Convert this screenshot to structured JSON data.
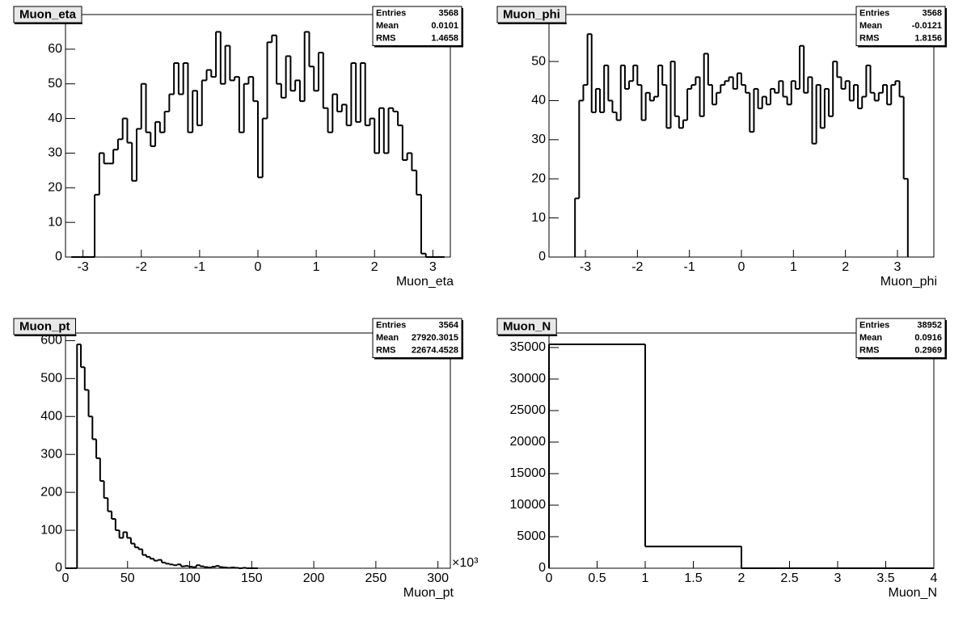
{
  "chart_data": [
    {
      "type": "histogram",
      "title": "Muon_eta",
      "x_label": "Muon_eta",
      "stats": [
        {
          "label": "Entries",
          "value": 3568
        },
        {
          "label": "Mean",
          "value": 0.0101
        },
        {
          "label": "RMS",
          "value": 1.4658
        }
      ],
      "color": "#000000",
      "xlim": [
        -3.3,
        3.3
      ],
      "ylim": [
        0,
        70
      ],
      "xticks": [
        -3,
        -2,
        -1,
        0,
        1,
        2,
        3
      ],
      "yticks": [
        0,
        10,
        20,
        30,
        40,
        50,
        60
      ],
      "bins": [
        -3.2,
        -3.12,
        -3.04,
        -2.96,
        -2.88,
        -2.8,
        -2.72,
        -2.64,
        -2.56,
        -2.48,
        -2.4,
        -2.32,
        -2.24,
        -2.16,
        -2.08,
        -2,
        -1.92,
        -1.84,
        -1.76,
        -1.68,
        -1.6,
        -1.52,
        -1.44,
        -1.36,
        -1.28,
        -1.2,
        -1.12,
        -1.04,
        -0.96,
        -0.88,
        -0.8,
        -0.72,
        -0.64,
        -0.56,
        -0.48,
        -0.4,
        -0.32,
        -0.24,
        -0.16,
        -0.08,
        0,
        0.08,
        0.16,
        0.24,
        0.32,
        0.4,
        0.48,
        0.56,
        0.64,
        0.72,
        0.8,
        0.88,
        0.96,
        1.04,
        1.12,
        1.2,
        1.28,
        1.36,
        1.44,
        1.52,
        1.6,
        1.68,
        1.76,
        1.84,
        1.92,
        2,
        2.08,
        2.16,
        2.24,
        2.32,
        2.4,
        2.48,
        2.56,
        2.64,
        2.72,
        2.8,
        2.88,
        2.96,
        3.04,
        3.12,
        3.2
      ],
      "values": [
        0,
        0,
        0,
        0,
        0,
        18,
        30,
        27,
        27,
        31,
        34,
        40,
        33,
        22,
        37,
        50,
        36,
        32,
        39,
        36,
        42,
        47,
        56,
        47,
        56,
        36,
        48,
        38,
        51,
        54,
        52,
        65,
        50,
        61,
        51,
        52,
        36,
        50,
        52,
        45,
        23,
        40,
        62,
        64,
        50,
        46,
        58,
        48,
        51,
        45,
        65,
        55,
        48,
        59,
        43,
        36,
        47,
        42,
        44,
        38,
        56,
        39,
        56,
        38,
        40,
        30,
        43,
        30,
        43,
        42,
        38,
        28,
        30,
        25,
        18,
        1,
        0,
        0,
        0,
        0
      ]
    },
    {
      "type": "histogram",
      "title": "Muon_phi",
      "x_label": "Muon_phi",
      "stats": [
        {
          "label": "Entries",
          "value": 3568
        },
        {
          "label": "Mean",
          "value": -0.0121
        },
        {
          "label": "RMS",
          "value": 1.8156
        }
      ],
      "color": "#000000",
      "xlim": [
        -3.7,
        3.7
      ],
      "ylim": [
        0,
        62
      ],
      "xticks": [
        -3,
        -2,
        -1,
        0,
        1,
        2,
        3
      ],
      "yticks": [
        0,
        10,
        20,
        30,
        40,
        50
      ],
      "bins": [
        -3.2,
        -3.12,
        -3.04,
        -2.96,
        -2.88,
        -2.8,
        -2.72,
        -2.64,
        -2.56,
        -2.48,
        -2.4,
        -2.32,
        -2.24,
        -2.16,
        -2.08,
        -2,
        -1.92,
        -1.84,
        -1.76,
        -1.68,
        -1.6,
        -1.52,
        -1.44,
        -1.36,
        -1.28,
        -1.2,
        -1.12,
        -1.04,
        -0.96,
        -0.88,
        -0.8,
        -0.72,
        -0.64,
        -0.56,
        -0.48,
        -0.4,
        -0.32,
        -0.24,
        -0.16,
        -0.08,
        0,
        0.08,
        0.16,
        0.24,
        0.32,
        0.4,
        0.48,
        0.56,
        0.64,
        0.72,
        0.8,
        0.88,
        0.96,
        1.04,
        1.12,
        1.2,
        1.28,
        1.36,
        1.44,
        1.52,
        1.6,
        1.68,
        1.76,
        1.84,
        1.92,
        2,
        2.08,
        2.16,
        2.24,
        2.32,
        2.4,
        2.48,
        2.56,
        2.64,
        2.72,
        2.8,
        2.88,
        2.96,
        3.04,
        3.12,
        3.2
      ],
      "values": [
        15,
        40,
        44,
        57,
        37,
        43,
        37,
        49,
        40,
        37,
        35,
        49,
        43,
        45,
        49,
        44,
        35,
        42,
        40,
        41,
        49,
        44,
        33,
        50,
        36,
        33,
        35,
        43,
        44,
        46,
        36,
        52,
        44,
        39,
        42,
        44,
        45,
        46,
        43,
        47,
        44,
        42,
        32,
        43,
        38,
        41,
        39,
        43,
        42,
        45,
        41,
        39,
        45,
        43,
        54,
        42,
        46,
        29,
        44,
        33,
        43,
        36,
        50,
        46,
        43,
        45,
        40,
        44,
        38,
        41,
        49,
        42,
        40,
        42,
        44,
        39,
        44,
        45,
        41,
        20
      ]
    },
    {
      "type": "histogram",
      "title": "Muon_pt",
      "x_label": "Muon_pt",
      "x_multiplier_label": "×10³",
      "stats": [
        {
          "label": "Entries",
          "value": 3564
        },
        {
          "label": "Mean",
          "value": 27920.3015
        },
        {
          "label": "RMS",
          "value": 22674.4528
        }
      ],
      "color": "#000000",
      "xlim": [
        0,
        310
      ],
      "ylim": [
        0,
        620
      ],
      "xticks": [
        0,
        50,
        100,
        150,
        200,
        250,
        300
      ],
      "yticks": [
        0,
        100,
        200,
        300,
        400,
        500,
        600
      ],
      "bins": [
        0,
        3.1,
        6.2,
        9.3,
        12.4,
        15.5,
        18.6,
        21.7,
        24.8,
        27.9,
        31,
        34.1,
        37.2,
        40.3,
        43.4,
        46.5,
        49.6,
        52.7,
        55.8,
        58.9,
        62,
        65.1,
        68.2,
        71.3,
        74.4,
        77.5,
        80.6,
        83.7,
        86.8,
        89.9,
        93,
        96.1,
        99.2,
        102.3,
        105.4,
        108.5,
        111.6,
        114.7,
        117.8,
        120.9,
        124,
        127.1,
        130.2,
        133.3,
        136.4,
        139.5,
        142.6,
        145.7,
        148.8,
        151.9,
        155
      ],
      "values": [
        0,
        0,
        0,
        590,
        530,
        470,
        400,
        340,
        290,
        230,
        185,
        150,
        130,
        100,
        80,
        95,
        80,
        65,
        55,
        50,
        35,
        30,
        25,
        20,
        22,
        15,
        12,
        10,
        8,
        10,
        5,
        6,
        4,
        3,
        8,
        5,
        3,
        2,
        4,
        6,
        3,
        2,
        1,
        2,
        1,
        0,
        1,
        0,
        0,
        0
      ]
    },
    {
      "type": "histogram",
      "title": "Muon_N",
      "x_label": "Muon_N",
      "stats": [
        {
          "label": "Entries",
          "value": 38952
        },
        {
          "label": "Mean",
          "value": 0.0916
        },
        {
          "label": "RMS",
          "value": 0.2969
        }
      ],
      "color": "#000000",
      "xlim": [
        0,
        4
      ],
      "ylim": [
        0,
        37300
      ],
      "xticks": [
        0,
        0.5,
        1,
        1.5,
        2,
        2.5,
        3,
        3.5,
        4
      ],
      "yticks": [
        0,
        5000,
        10000,
        15000,
        20000,
        25000,
        30000,
        35000
      ],
      "bins": [
        0,
        1,
        2,
        3,
        4
      ],
      "values": [
        35500,
        3450,
        0,
        0
      ]
    }
  ]
}
